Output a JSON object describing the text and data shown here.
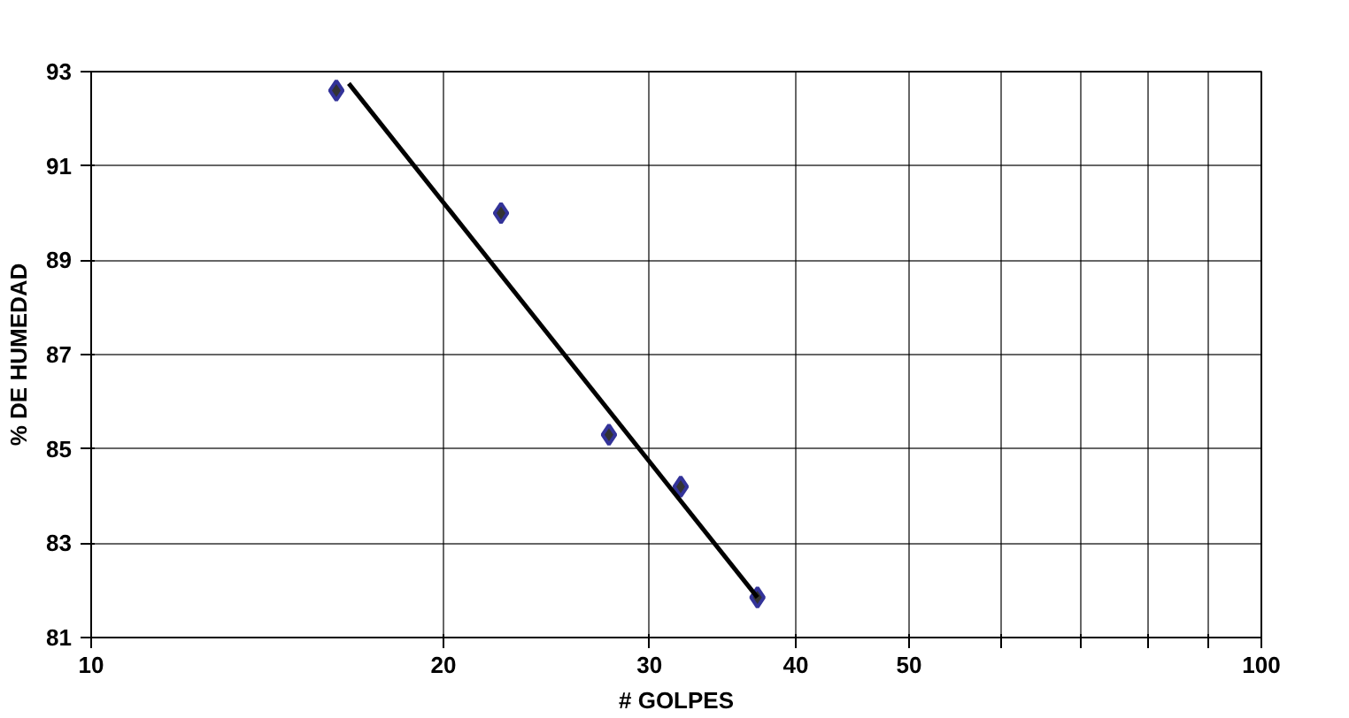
{
  "chart_data": {
    "type": "scatter",
    "xlabel": "# GOLPES",
    "ylabel": "% DE HUMEDAD",
    "log": "x",
    "grid": true,
    "xlim": [
      10,
      100
    ],
    "ylim": [
      81,
      93
    ],
    "xticks": [
      10,
      20,
      30,
      40,
      50,
      {
        "value": 60,
        "label": null
      },
      {
        "value": 70,
        "label": null
      },
      {
        "value": 80,
        "label": null
      },
      {
        "value": 90,
        "label": null
      },
      100
    ],
    "yticks": [
      81,
      83,
      85,
      87,
      89,
      91,
      93
    ],
    "series": [
      {
        "marker": "diamond",
        "color": "#333399",
        "x": [
          16.2,
          22.4,
          27.7,
          31.9,
          37.1
        ],
        "values": [
          92.6,
          90.0,
          85.3,
          84.2,
          81.85
        ]
      },
      {
        "type": "line",
        "marker": "none",
        "line_style": "solid",
        "color": "#000000",
        "x": [
          16.6,
          37.1
        ],
        "values": [
          92.75,
          81.85
        ]
      }
    ]
  }
}
